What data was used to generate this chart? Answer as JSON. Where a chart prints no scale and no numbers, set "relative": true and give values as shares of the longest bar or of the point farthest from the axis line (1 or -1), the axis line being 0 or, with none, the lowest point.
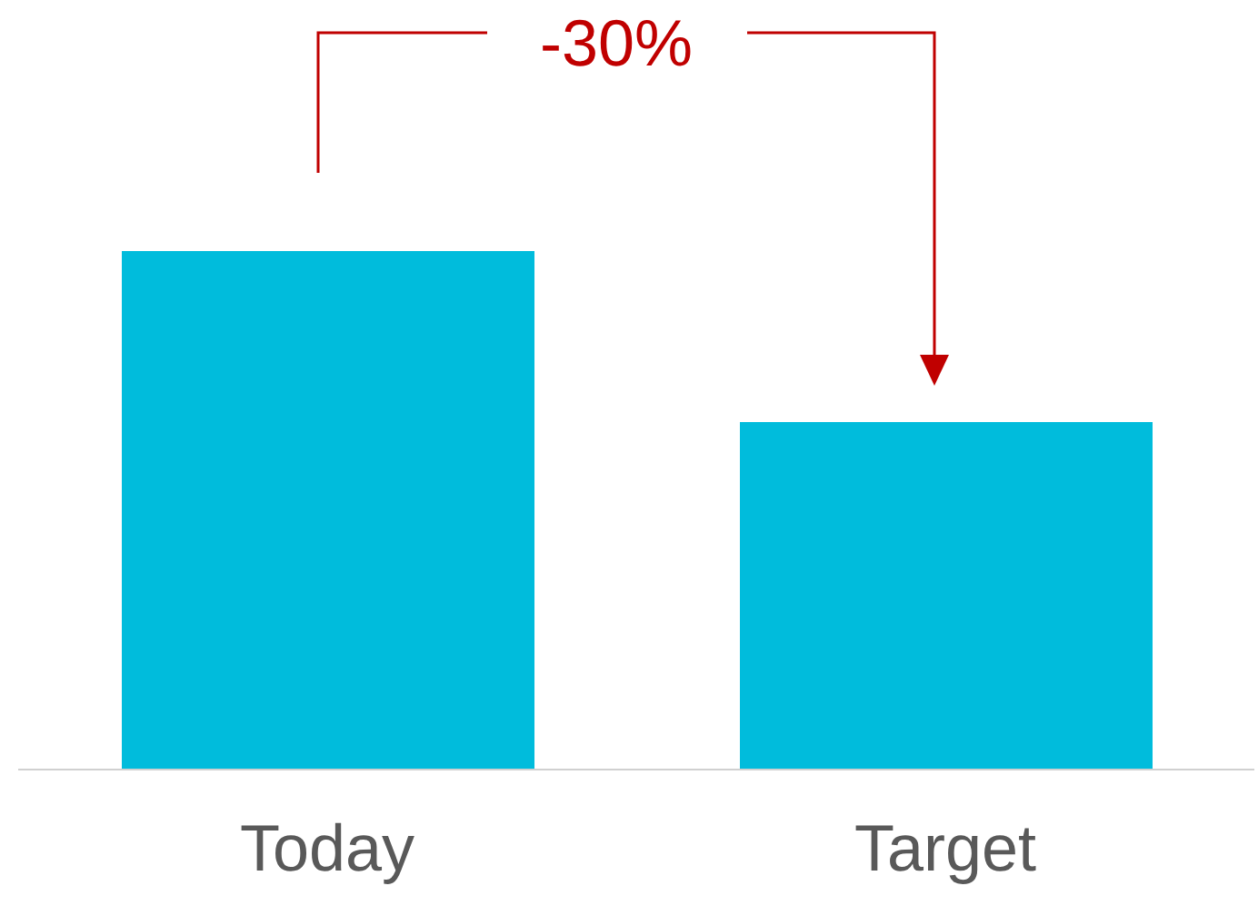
{
  "chart_data": {
    "type": "bar",
    "relative": true,
    "categories": [
      "Today",
      "Target"
    ],
    "values": [
      1,
      0.67
    ],
    "color": "#00bcdc",
    "annotations": [
      "-30%"
    ]
  }
}
